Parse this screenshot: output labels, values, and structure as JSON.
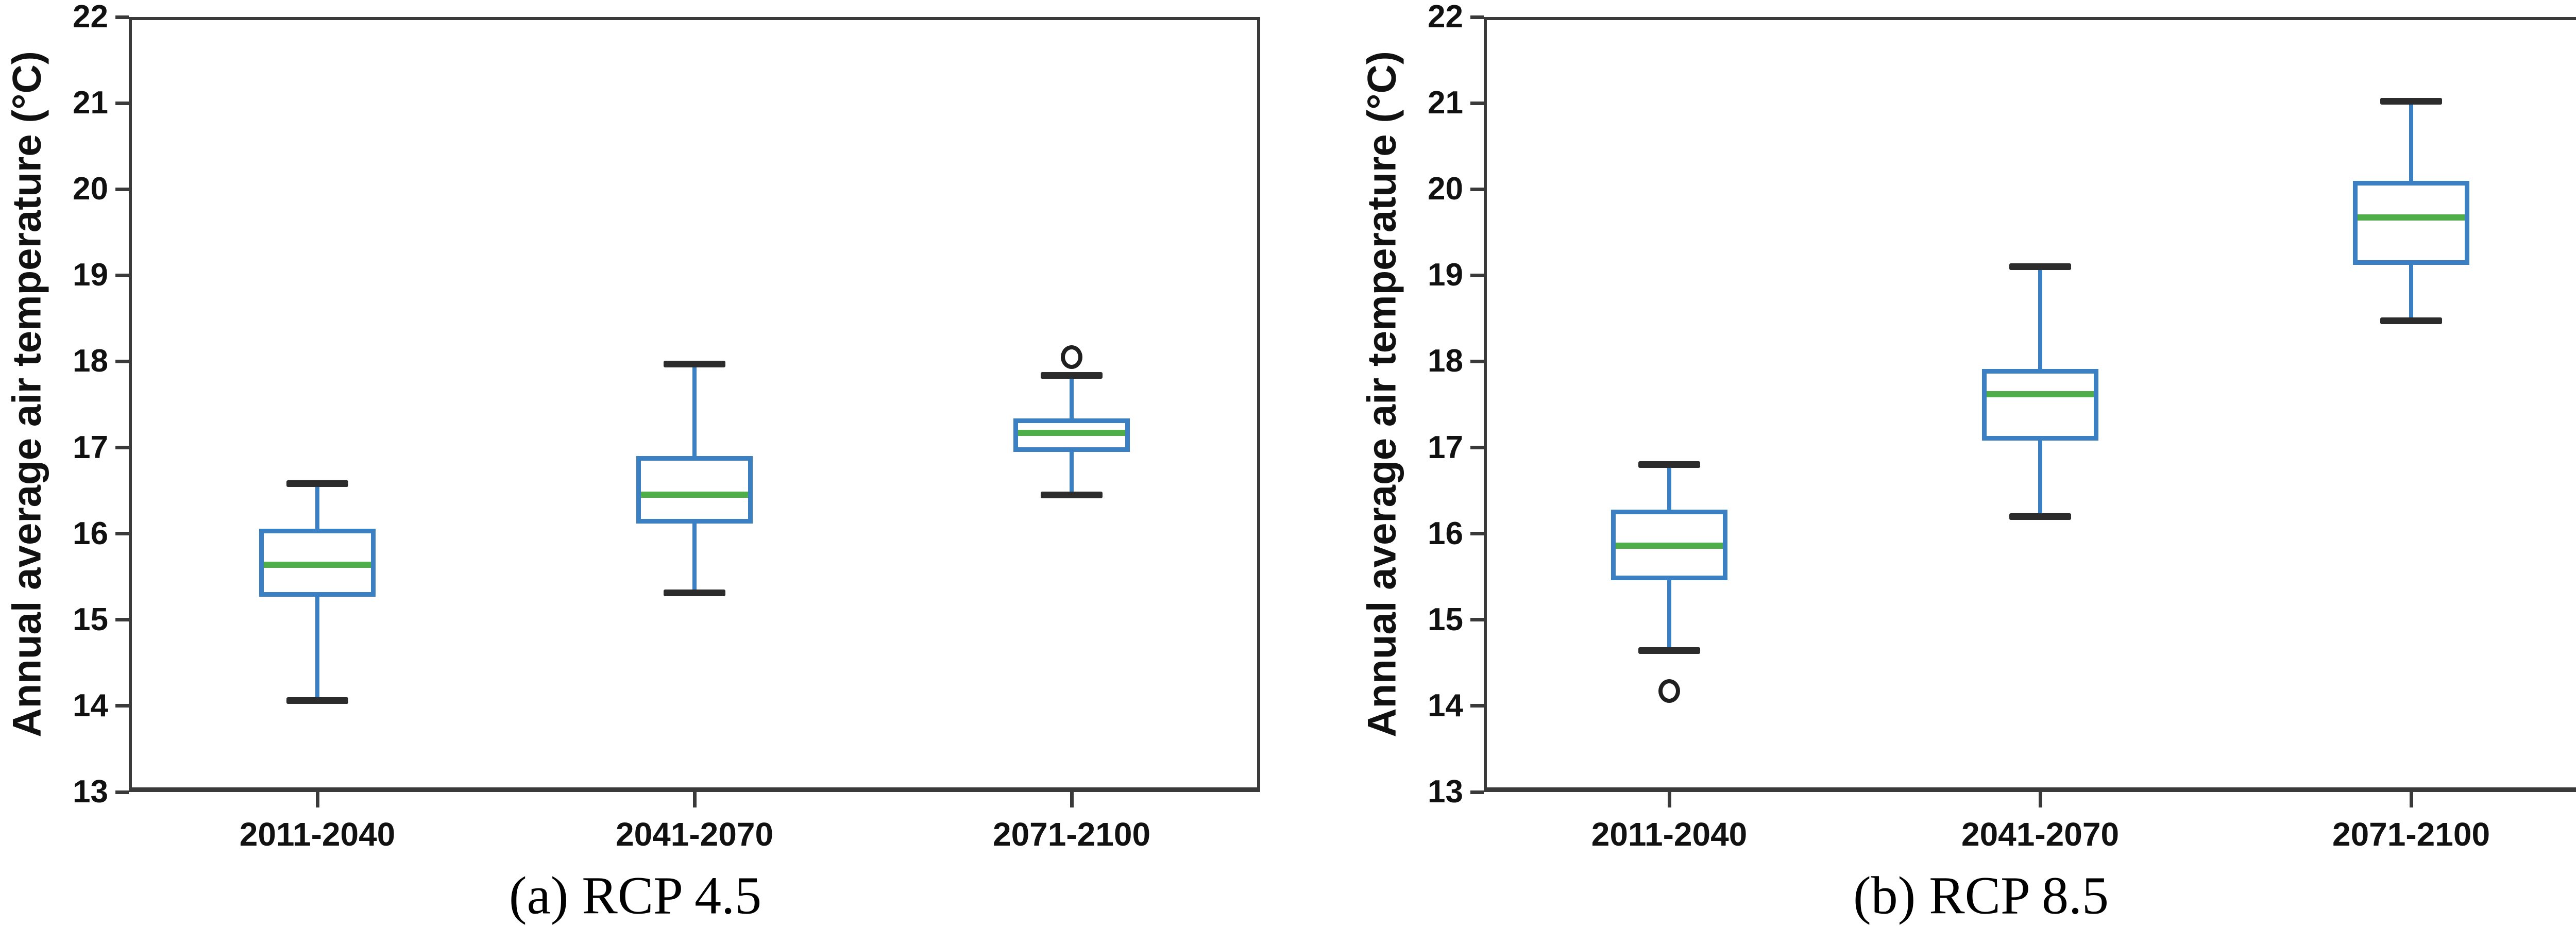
{
  "figure": {
    "background": "#ffffff"
  },
  "colors": {
    "box_edge": "#3a80c2",
    "whisker": "#3a80c2",
    "median": "#4fad4a",
    "cap": "#2c2c2c",
    "outlier_ring": "#1f1f1f",
    "spine": "#3a3a3a",
    "text": "#111111"
  },
  "chart_data": [
    {
      "type": "box",
      "panel": "a",
      "caption": "(a)  RCP  4.5",
      "ylabel": "Annual average air temperature (°C)",
      "xlabel": "",
      "ylim": [
        13,
        22
      ],
      "yticks": [
        22,
        21,
        20,
        19,
        18,
        17,
        16,
        15,
        14,
        13
      ],
      "grid": false,
      "categories": [
        "2011-2040",
        "2041-2070",
        "2071-2100"
      ],
      "boxes": [
        {
          "category": "2011-2040",
          "whisker_low": 14.06,
          "q1": 15.27,
          "median": 15.64,
          "q3": 16.06,
          "whisker_high": 16.58,
          "outliers": []
        },
        {
          "category": "2041-2070",
          "whisker_low": 15.31,
          "q1": 16.12,
          "median": 16.45,
          "q3": 16.9,
          "whisker_high": 17.97,
          "outliers": []
        },
        {
          "category": "2071-2100",
          "whisker_low": 16.45,
          "q1": 16.95,
          "median": 17.17,
          "q3": 17.34,
          "whisker_high": 17.84,
          "outliers": [
            18.05
          ]
        }
      ]
    },
    {
      "type": "box",
      "panel": "b",
      "caption": "(b)  RCP  8.5",
      "ylabel": "Annual average air temperature (°C)",
      "xlabel": "",
      "ylim": [
        13,
        22
      ],
      "yticks": [
        22,
        21,
        20,
        19,
        18,
        17,
        16,
        15,
        14,
        13
      ],
      "grid": false,
      "categories": [
        "2011-2040",
        "2041-2070",
        "2071-2100"
      ],
      "boxes": [
        {
          "category": "2011-2040",
          "whisker_low": 14.64,
          "q1": 15.46,
          "median": 15.86,
          "q3": 16.28,
          "whisker_high": 16.8,
          "outliers": [
            14.17
          ]
        },
        {
          "category": "2041-2070",
          "whisker_low": 16.2,
          "q1": 17.08,
          "median": 17.62,
          "q3": 17.91,
          "whisker_high": 19.1,
          "outliers": []
        },
        {
          "category": "2071-2100",
          "whisker_low": 18.47,
          "q1": 19.12,
          "median": 19.67,
          "q3": 20.1,
          "whisker_high": 21.02,
          "outliers": []
        }
      ]
    }
  ]
}
